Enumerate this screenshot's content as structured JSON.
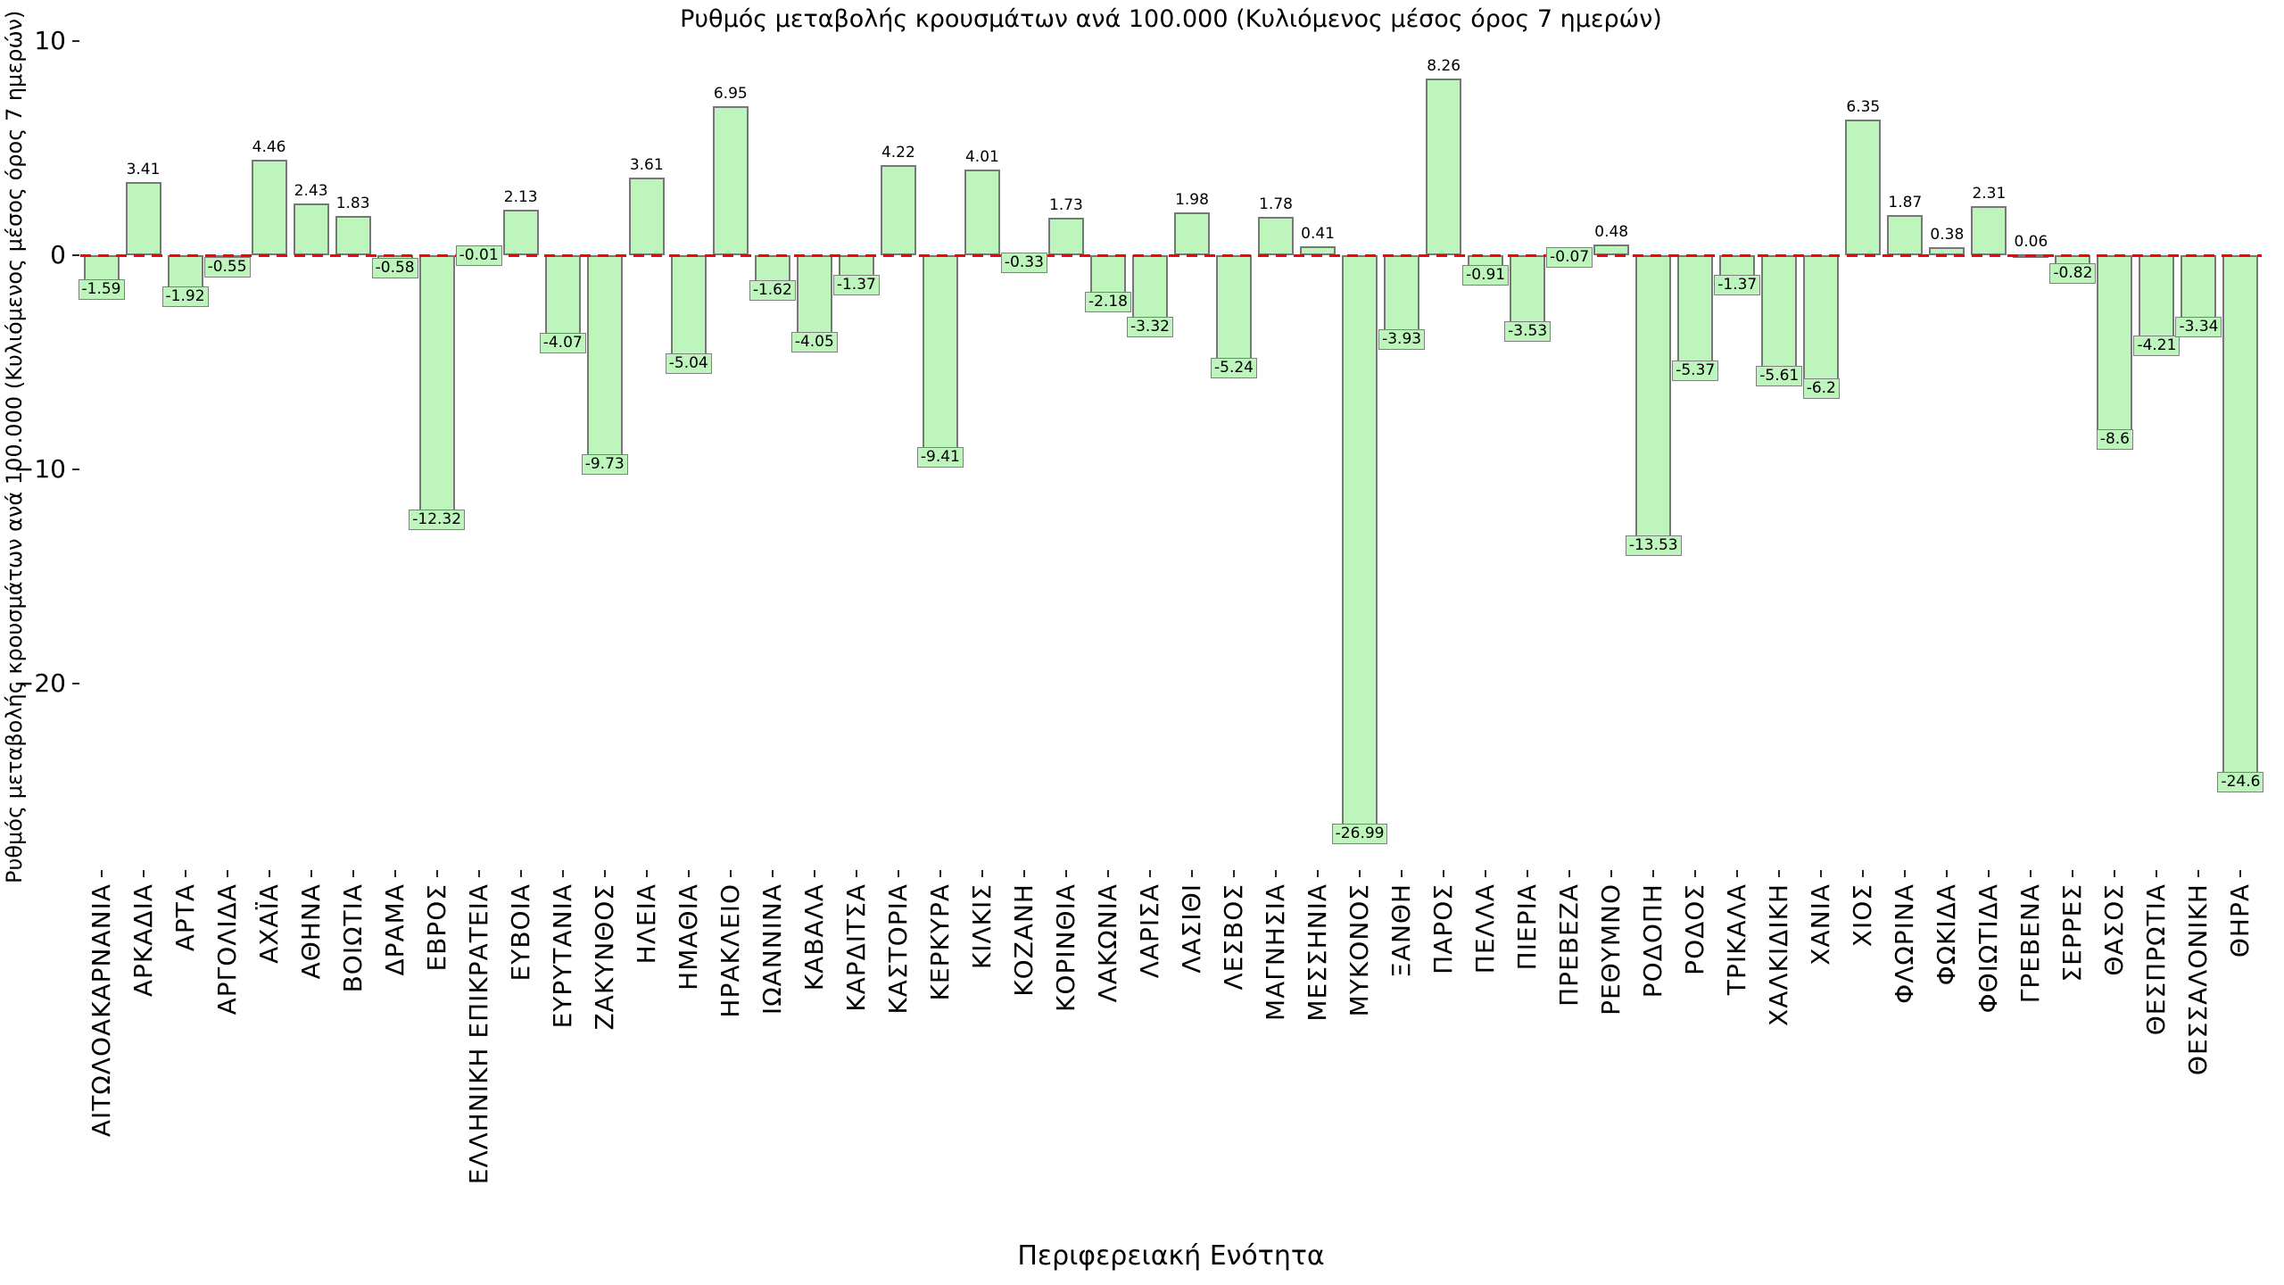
{
  "chart_data": {
    "type": "bar",
    "title": "Ρυθμός μεταβολής κρουσμάτων ανά 100.000 (Κυλιόμενος μέσος όρος 7 ημερών)",
    "xlabel": "Περιφερειακή Ενότητα",
    "ylabel": "Ρυθμός μεταβολής κρουσμάτων ανά 100.000 (Κυλιόμενος μέσος όρος 7 ημερών)",
    "categories": [
      "ΑΙΤΩΛΟΑΚΑΡΝΑΝΙΑ",
      "ΑΡΚΑΔΙΑ",
      "ΑΡΤΑ",
      "ΑΡΓΟΛΙΔΑ",
      "ΑΧΑΪΑ",
      "ΑΘΗΝΑ",
      "ΒΟΙΩΤΙΑ",
      "ΔΡΑΜΑ",
      "ΕΒΡΟΣ",
      "ΕΛΛΗΝΙΚΗ ΕΠΙΚΡΑΤΕΙΑ",
      "ΕΥΒΟΙΑ",
      "ΕΥΡΥΤΑΝΙΑ",
      "ΖΑΚΥΝΘΟΣ",
      "ΗΛΕΙΑ",
      "ΗΜΑΘΙΑ",
      "ΗΡΑΚΛΕΙΟ",
      "ΙΩΑΝΝΙΝΑ",
      "ΚΑΒΑΛΑ",
      "ΚΑΡΔΙΤΣΑ",
      "ΚΑΣΤΟΡΙΑ",
      "ΚΕΡΚΥΡΑ",
      "ΚΙΛΚΙΣ",
      "ΚΟΖΑΝΗ",
      "ΚΟΡΙΝΘΙΑ",
      "ΛΑΚΩΝΙΑ",
      "ΛΑΡΙΣΑ",
      "ΛΑΣΙΘΙ",
      "ΛΕΣΒΟΣ",
      "ΜΑΓΝΗΣΙΑ",
      "ΜΕΣΣΗΝΙΑ",
      "ΜΥΚΟΝΟΣ",
      "ΞΑΝΘΗ",
      "ΠΑΡΟΣ",
      "ΠΕΛΛΑ",
      "ΠΙΕΡΙΑ",
      "ΠΡΕΒΕΖΑ",
      "ΡΕΘΥΜΝΟ",
      "ΡΟΔΟΠΗ",
      "ΡΟΔΟΣ",
      "ΤΡΙΚΑΛΑ",
      "ΧΑΛΚΙΔΙΚΗ",
      "ΧΑΝΙΑ",
      "ΧΙΟΣ",
      "ΦΛΩΡΙΝΑ",
      "ΦΩΚΙΔΑ",
      "ΦΘΙΩΤΙΔΑ",
      "ΓΡΕΒΕΝΑ",
      "ΣΕΡΡΕΣ",
      "ΘΑΣΟΣ",
      "ΘΕΣΠΡΩΤΙΑ",
      "ΘΕΣΣΑΛΟΝΙΚΗ",
      "ΘΗΡΑ"
    ],
    "values": [
      -1.59,
      3.41,
      -1.92,
      -0.55,
      4.46,
      2.43,
      1.83,
      -0.58,
      -12.32,
      -0.01,
      2.13,
      -4.07,
      -9.73,
      3.61,
      -5.04,
      6.95,
      -1.62,
      -4.05,
      -1.37,
      4.22,
      -9.41,
      4.01,
      -0.33,
      1.73,
      -2.18,
      -3.32,
      1.98,
      -5.24,
      1.78,
      0.41,
      -26.99,
      -3.93,
      8.26,
      -0.91,
      -3.53,
      -0.07,
      0.48,
      -13.53,
      -5.37,
      -1.37,
      -5.61,
      -6.2,
      6.35,
      1.87,
      0.38,
      2.31,
      0.06,
      -0.82,
      -8.6,
      -4.21,
      -3.34,
      -24.6
    ],
    "yticks": [
      {
        "value": 10,
        "label": "10"
      },
      {
        "value": 0,
        "label": "0"
      },
      {
        "value": -10,
        "label": "−10"
      },
      {
        "value": -20,
        "label": "−20"
      }
    ],
    "ylim": [
      -28.5,
      10.5
    ],
    "grid": false,
    "legend": null,
    "zero_line_color": "#ff0000",
    "zero_line_style": "dashed",
    "bar_color": "#bdf5bd",
    "bar_edge_color": "#777777"
  }
}
